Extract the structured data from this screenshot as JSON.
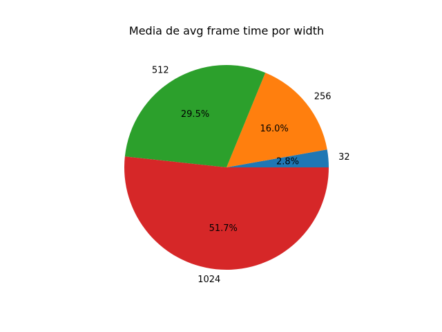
{
  "chart_data": {
    "type": "pie",
    "title": "Media de avg frame time por width",
    "categories": [
      "32",
      "256",
      "512",
      "1024"
    ],
    "values": [
      2.8,
      16.0,
      29.5,
      51.7
    ],
    "percent_labels": [
      "2.8%",
      "16.0%",
      "29.5%",
      "51.7%"
    ],
    "colors": [
      "#1f77b4",
      "#ff7f0e",
      "#2ca02c",
      "#d62728"
    ],
    "start_angle_deg": 0,
    "direction": "counterclockwise",
    "legend": "none"
  }
}
